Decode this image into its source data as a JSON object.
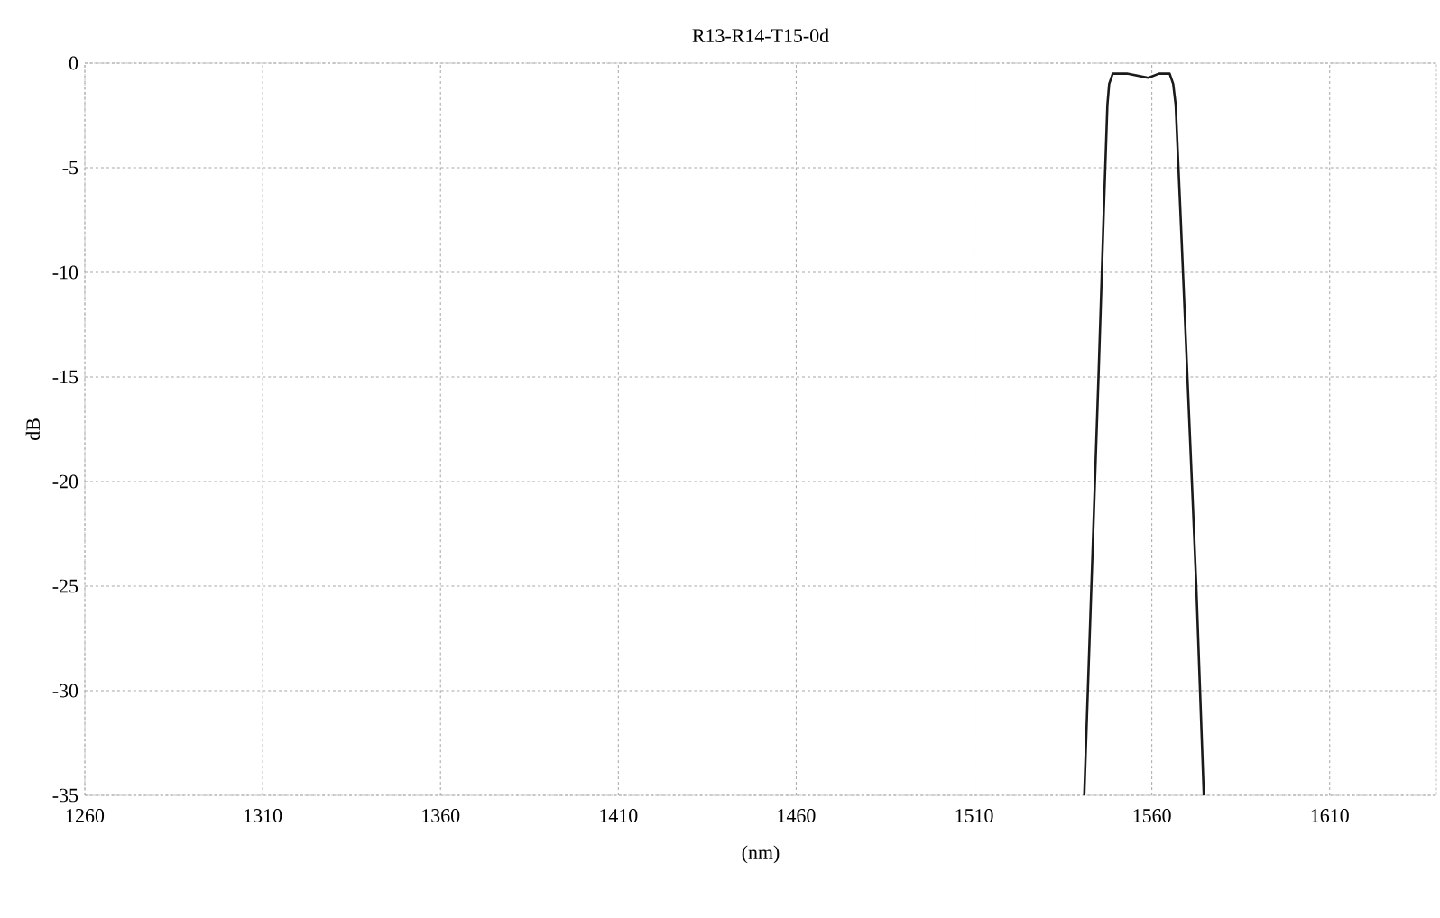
{
  "chart_data": {
    "type": "line",
    "title": "R13-R14-T15-0d",
    "xlabel": "(nm)",
    "ylabel": "dB",
    "x": [
      1541,
      1543,
      1545,
      1546.5,
      1547.5,
      1548,
      1549,
      1553,
      1556,
      1559,
      1562,
      1565,
      1566,
      1566.7,
      1568,
      1570,
      1572.5,
      1574.6
    ],
    "values": [
      -35,
      -25,
      -15,
      -7,
      -2,
      -1,
      -0.5,
      -0.5,
      -0.6,
      -0.7,
      -0.5,
      -0.5,
      -1,
      -2,
      -7,
      -15,
      -25,
      -35
    ],
    "color": "#1a1a1a",
    "xlim": [
      1260,
      1640
    ],
    "ylim": [
      -35,
      0
    ],
    "xticks": [
      1260,
      1310,
      1360,
      1410,
      1460,
      1510,
      1560,
      1610
    ],
    "yticks": [
      -35,
      -30,
      -25,
      -20,
      -15,
      -10,
      -5,
      0
    ],
    "grid": true,
    "line_style": "solid",
    "marker": "none"
  }
}
